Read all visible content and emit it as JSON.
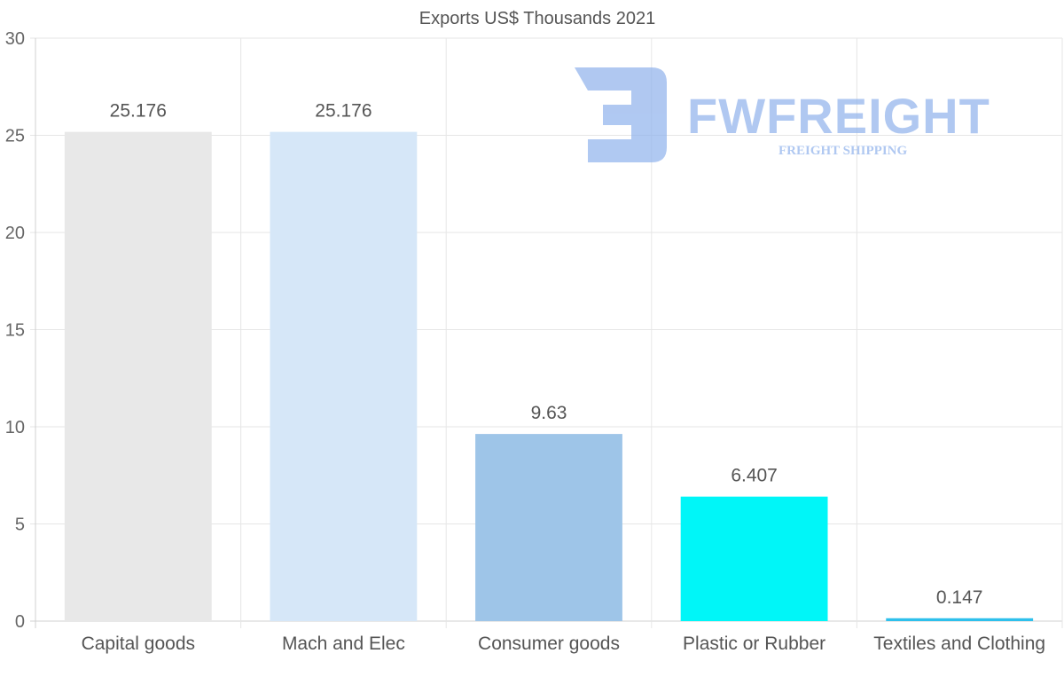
{
  "chart_data": {
    "type": "bar",
    "title": "Exports US$ Thousands 2021",
    "categories": [
      "Capital goods",
      "Mach and Elec",
      "Consumer goods",
      "Plastic or Rubber",
      "Textiles and Clothing"
    ],
    "values": [
      25.176,
      25.176,
      9.63,
      6.407,
      0.147
    ],
    "data_labels": [
      "25.176",
      "25.176",
      "9.63",
      "6.407",
      "0.147"
    ],
    "bar_colors": [
      "#e8e8e8",
      "#d6e7f8",
      "#9ec5e8",
      "#00f6f8",
      "#2ec0ec"
    ],
    "xlabel": "",
    "ylabel": "",
    "ylim": [
      0,
      30
    ],
    "yticks": [
      0,
      5,
      10,
      15,
      20,
      25,
      30
    ],
    "grid": true,
    "legend": "none"
  },
  "watermark": {
    "brand": "FWFREIGHT",
    "tagline": "FREIGHT SHIPPING",
    "color": "#8fb2ec"
  }
}
